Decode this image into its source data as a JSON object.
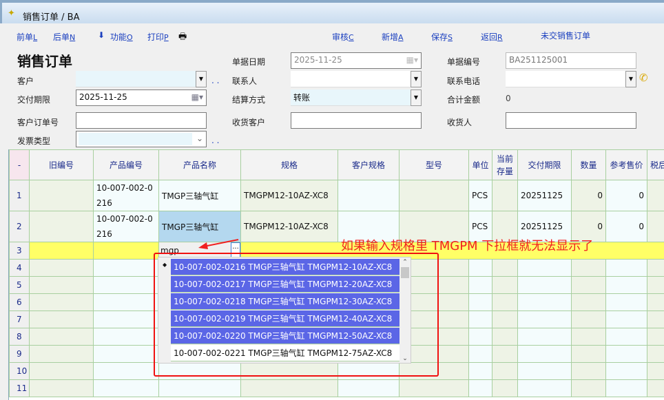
{
  "window": {
    "title": "销售订单 / BA"
  },
  "toolbar": {
    "prev": "前单",
    "prev_key": "L",
    "next": "后单",
    "next_key": "N",
    "func": "功能",
    "func_key": "O",
    "print": "打印",
    "print_key": "P",
    "audit": "审核",
    "audit_key": "C",
    "add": "新增",
    "add_key": "A",
    "save": "保存",
    "save_key": "S",
    "back": "返回",
    "back_key": "R",
    "pending": "未交销售订单"
  },
  "form": {
    "heading": "销售订单",
    "doc_date_label": "单据日期",
    "doc_date": "2025-11-25",
    "doc_no_label": "单据编号",
    "doc_no": "BA251125001",
    "customer_label": "客户",
    "customer": "",
    "contact_label": "联系人",
    "contact": "",
    "phone_label": "联系电话",
    "phone": "",
    "deadline_label": "交付期限",
    "deadline": "2025-11-25",
    "settle_label": "结算方式",
    "settle": "转账",
    "total_label": "合计金额",
    "total": "0",
    "cust_order_label": "客户订单号",
    "cust_order": "",
    "recv_cust_label": "收货客户",
    "recv_cust": "",
    "receiver_label": "收货人",
    "receiver": "",
    "invoice_label": "发票类型",
    "invoice": "",
    "more": ". ."
  },
  "grid": {
    "columns": [
      "-",
      "旧编号",
      "产品编号",
      "产品名称",
      "规格",
      "客户规格",
      "型号",
      "单位",
      "当前存量",
      "交付期限",
      "数量",
      "参考售价",
      "税后"
    ],
    "rows": [
      {
        "n": "1",
        "old": "",
        "code": "10-007-002-0216",
        "name": "TMGP三轴气缸",
        "spec": "TMGPM12-10AZ-XC8",
        "cspec": "",
        "model": "",
        "unit": "PCS",
        "stock": "",
        "date": "20251125",
        "qty": "0",
        "price": "0"
      },
      {
        "n": "2",
        "old": "",
        "code": "10-007-002-0216",
        "name": "TMGP三轴气缸",
        "spec": "TMGPM12-10AZ-XC8",
        "cspec": "",
        "model": "",
        "unit": "PCS",
        "stock": "",
        "date": "20251125",
        "qty": "0",
        "price": "0"
      }
    ],
    "edit_row": {
      "n": "3",
      "input": "mgp",
      "ellipsis": "..."
    },
    "empty_rows": [
      "4",
      "5",
      "6",
      "7",
      "8",
      "9",
      "10",
      "11"
    ]
  },
  "dropdown": {
    "options": [
      "10-007-002-0216 TMGP三轴气缸 TMGPM12-10AZ-XC8",
      "10-007-002-0217 TMGP三轴气缸 TMGPM12-20AZ-XC8",
      "10-007-002-0218 TMGP三轴气缸 TMGPM12-30AZ-XC8",
      "10-007-002-0219 TMGP三轴气缸 TMGPM12-40AZ-XC8",
      "10-007-002-0220 TMGP三轴气缸 TMGPM12-50AZ-XC8",
      "10-007-002-0221 TMGP三轴气缸 TMGPM12-75AZ-XC8"
    ],
    "selected_count": 5
  },
  "annotation": {
    "text": "如果输入规格里 TMGPM 下拉框就无法显示了",
    "color": "#f02020"
  }
}
